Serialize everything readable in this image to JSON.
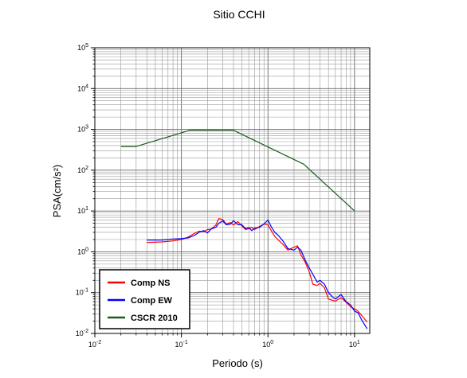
{
  "chart_data": {
    "type": "line",
    "title": "Sitio CCHI",
    "xlabel": "Periodo (s)",
    "ylabel": "PSA(cm/s²)",
    "xscale": "log",
    "yscale": "log",
    "xlim": [
      0.01,
      15
    ],
    "ylim": [
      0.01,
      100000
    ],
    "grid": true,
    "legend_position": "bottom-left",
    "x_ticks": [
      {
        "value": 0.01,
        "base": "10",
        "exp": "-2"
      },
      {
        "value": 0.1,
        "base": "10",
        "exp": "-1"
      },
      {
        "value": 1,
        "base": "10",
        "exp": "0"
      },
      {
        "value": 10,
        "base": "10",
        "exp": "1"
      }
    ],
    "y_ticks": [
      {
        "value": 0.01,
        "base": "10",
        "exp": "-2"
      },
      {
        "value": 0.1,
        "base": "10",
        "exp": "-1"
      },
      {
        "value": 1,
        "base": "10",
        "exp": "0"
      },
      {
        "value": 10,
        "base": "10",
        "exp": "1"
      },
      {
        "value": 100,
        "base": "10",
        "exp": "2"
      },
      {
        "value": 1000,
        "base": "10",
        "exp": "3"
      },
      {
        "value": 10000,
        "base": "10",
        "exp": "4"
      },
      {
        "value": 100000,
        "base": "10",
        "exp": "5"
      }
    ],
    "series": [
      {
        "name": "Comp NS",
        "color": "#ff0000",
        "points": [
          [
            0.04,
            1.7
          ],
          [
            0.06,
            1.75
          ],
          [
            0.08,
            1.85
          ],
          [
            0.1,
            2.0
          ],
          [
            0.12,
            2.3
          ],
          [
            0.14,
            2.8
          ],
          [
            0.16,
            3.2
          ],
          [
            0.18,
            3.1
          ],
          [
            0.2,
            3.5
          ],
          [
            0.22,
            3.6
          ],
          [
            0.25,
            4.5
          ],
          [
            0.27,
            6.5
          ],
          [
            0.3,
            6.2
          ],
          [
            0.33,
            4.8
          ],
          [
            0.37,
            5.2
          ],
          [
            0.4,
            4.5
          ],
          [
            0.45,
            5.5
          ],
          [
            0.5,
            4.3
          ],
          [
            0.55,
            3.5
          ],
          [
            0.6,
            3.7
          ],
          [
            0.65,
            4.0
          ],
          [
            0.7,
            3.5
          ],
          [
            0.8,
            4.2
          ],
          [
            0.9,
            4.8
          ],
          [
            1.0,
            4.6
          ],
          [
            1.1,
            3.2
          ],
          [
            1.2,
            2.4
          ],
          [
            1.3,
            2.0
          ],
          [
            1.5,
            1.5
          ],
          [
            1.7,
            1.1
          ],
          [
            2.0,
            1.3
          ],
          [
            2.2,
            1.4
          ],
          [
            2.4,
            0.85
          ],
          [
            2.7,
            0.55
          ],
          [
            3.0,
            0.32
          ],
          [
            3.3,
            0.16
          ],
          [
            3.7,
            0.15
          ],
          [
            4.0,
            0.17
          ],
          [
            4.5,
            0.13
          ],
          [
            5.0,
            0.07
          ],
          [
            5.5,
            0.065
          ],
          [
            6.0,
            0.062
          ],
          [
            7.0,
            0.075
          ],
          [
            8.0,
            0.058
          ],
          [
            9.0,
            0.045
          ],
          [
            10.0,
            0.04
          ],
          [
            11.0,
            0.035
          ],
          [
            12.0,
            0.028
          ],
          [
            14.0,
            0.019
          ]
        ]
      },
      {
        "name": "Comp EW",
        "color": "#0000ff",
        "points": [
          [
            0.04,
            1.95
          ],
          [
            0.06,
            1.95
          ],
          [
            0.08,
            2.05
          ],
          [
            0.1,
            2.1
          ],
          [
            0.12,
            2.2
          ],
          [
            0.14,
            2.5
          ],
          [
            0.16,
            3.0
          ],
          [
            0.18,
            3.3
          ],
          [
            0.2,
            2.9
          ],
          [
            0.22,
            3.6
          ],
          [
            0.25,
            4.0
          ],
          [
            0.27,
            5.0
          ],
          [
            0.3,
            5.7
          ],
          [
            0.33,
            4.6
          ],
          [
            0.37,
            4.8
          ],
          [
            0.4,
            5.8
          ],
          [
            0.45,
            4.6
          ],
          [
            0.5,
            4.6
          ],
          [
            0.55,
            3.7
          ],
          [
            0.6,
            3.9
          ],
          [
            0.65,
            3.3
          ],
          [
            0.7,
            3.8
          ],
          [
            0.8,
            4.0
          ],
          [
            0.9,
            4.8
          ],
          [
            1.0,
            6.0
          ],
          [
            1.1,
            4.0
          ],
          [
            1.2,
            3.0
          ],
          [
            1.3,
            2.6
          ],
          [
            1.5,
            1.8
          ],
          [
            1.7,
            1.2
          ],
          [
            2.0,
            1.1
          ],
          [
            2.2,
            1.3
          ],
          [
            2.4,
            1.1
          ],
          [
            2.7,
            0.62
          ],
          [
            3.0,
            0.4
          ],
          [
            3.3,
            0.28
          ],
          [
            3.7,
            0.18
          ],
          [
            4.0,
            0.2
          ],
          [
            4.5,
            0.16
          ],
          [
            5.0,
            0.1
          ],
          [
            5.5,
            0.08
          ],
          [
            6.0,
            0.07
          ],
          [
            7.0,
            0.09
          ],
          [
            8.0,
            0.06
          ],
          [
            9.0,
            0.05
          ],
          [
            10.0,
            0.035
          ],
          [
            11.0,
            0.032
          ],
          [
            12.0,
            0.022
          ],
          [
            14.0,
            0.013
          ]
        ]
      },
      {
        "name": "CSCR 2010",
        "color": "#1a5c1a",
        "points": [
          [
            0.02,
            380
          ],
          [
            0.03,
            380
          ],
          [
            0.125,
            950
          ],
          [
            0.4,
            950
          ],
          [
            2.6,
            140
          ],
          [
            10.0,
            10
          ]
        ]
      }
    ],
    "legend": [
      {
        "label": "Comp NS",
        "color": "#ff0000"
      },
      {
        "label": "Comp EW",
        "color": "#0000ff"
      },
      {
        "label": "CSCR 2010",
        "color": "#1a5c1a"
      }
    ]
  }
}
